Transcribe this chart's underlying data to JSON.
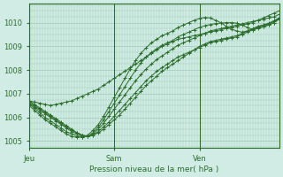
{
  "xlabel": "Pression niveau de la mer( hPa )",
  "bg_color": "#d0ece4",
  "grid_color": "#9fc9b8",
  "line_color": "#2d6e2d",
  "tick_color": "#2d6e2d",
  "label_color": "#2d6e2d",
  "ylim": [
    1004.7,
    1010.8
  ],
  "xlim": [
    0,
    47
  ],
  "day_positions": [
    0,
    16,
    32
  ],
  "day_labels": [
    "Jeu",
    "Sam",
    "Ven"
  ],
  "total_points": 48,
  "series": [
    [
      1006.7,
      1006.65,
      1006.6,
      1006.55,
      1006.5,
      1006.55,
      1006.6,
      1006.65,
      1006.7,
      1006.8,
      1006.9,
      1007.0,
      1007.1,
      1007.2,
      1007.35,
      1007.5,
      1007.65,
      1007.8,
      1007.95,
      1008.1,
      1008.25,
      1008.4,
      1008.55,
      1008.7,
      1008.85,
      1009.0,
      1009.1,
      1009.2,
      1009.3,
      1009.35,
      1009.4,
      1009.45,
      1009.5,
      1009.55,
      1009.6,
      1009.65,
      1009.7,
      1009.75,
      1009.8,
      1009.85,
      1009.9,
      1009.95,
      1010.0,
      1010.1,
      1010.2,
      1010.3,
      1010.4,
      1010.5
    ],
    [
      1006.7,
      1006.55,
      1006.4,
      1006.25,
      1006.1,
      1005.95,
      1005.8,
      1005.65,
      1005.5,
      1005.35,
      1005.25,
      1005.2,
      1005.25,
      1005.35,
      1005.5,
      1005.7,
      1005.9,
      1006.1,
      1006.35,
      1006.6,
      1006.85,
      1007.1,
      1007.35,
      1007.55,
      1007.75,
      1007.95,
      1008.1,
      1008.25,
      1008.4,
      1008.55,
      1008.7,
      1008.85,
      1009.0,
      1009.1,
      1009.2,
      1009.25,
      1009.3,
      1009.35,
      1009.4,
      1009.45,
      1009.55,
      1009.65,
      1009.75,
      1009.85,
      1009.9,
      1009.95,
      1010.05,
      1010.2
    ],
    [
      1006.65,
      1006.5,
      1006.35,
      1006.2,
      1006.05,
      1005.9,
      1005.75,
      1005.6,
      1005.45,
      1005.35,
      1005.25,
      1005.2,
      1005.25,
      1005.4,
      1005.6,
      1005.8,
      1006.05,
      1006.3,
      1006.55,
      1006.8,
      1007.05,
      1007.3,
      1007.55,
      1007.75,
      1007.95,
      1008.1,
      1008.25,
      1008.4,
      1008.55,
      1008.65,
      1008.75,
      1008.85,
      1008.95,
      1009.05,
      1009.15,
      1009.2,
      1009.25,
      1009.3,
      1009.35,
      1009.4,
      1009.5,
      1009.6,
      1009.7,
      1009.8,
      1009.85,
      1009.9,
      1010.0,
      1010.15
    ],
    [
      1006.6,
      1006.45,
      1006.3,
      1006.15,
      1006.0,
      1005.85,
      1005.7,
      1005.55,
      1005.4,
      1005.3,
      1005.22,
      1005.2,
      1005.3,
      1005.5,
      1005.75,
      1006.05,
      1006.35,
      1006.65,
      1006.95,
      1007.25,
      1007.55,
      1007.8,
      1008.05,
      1008.25,
      1008.45,
      1008.6,
      1008.75,
      1008.9,
      1009.05,
      1009.15,
      1009.25,
      1009.35,
      1009.45,
      1009.55,
      1009.65,
      1009.7,
      1009.75,
      1009.8,
      1009.85,
      1009.9,
      1009.95,
      1010.0,
      1010.05,
      1010.1,
      1010.15,
      1010.2,
      1010.25,
      1010.35
    ],
    [
      1006.55,
      1006.4,
      1006.2,
      1006.0,
      1005.85,
      1005.7,
      1005.55,
      1005.4,
      1005.3,
      1005.22,
      1005.18,
      1005.2,
      1005.35,
      1005.6,
      1005.9,
      1006.25,
      1006.6,
      1006.95,
      1007.3,
      1007.65,
      1008.0,
      1008.3,
      1008.55,
      1008.75,
      1008.9,
      1009.05,
      1009.15,
      1009.25,
      1009.4,
      1009.5,
      1009.6,
      1009.7,
      1009.8,
      1009.87,
      1009.92,
      1009.96,
      1009.98,
      1010.0,
      1010.0,
      1009.98,
      1009.9,
      1009.8,
      1009.7,
      1009.75,
      1009.82,
      1009.9,
      1010.0,
      1010.2
    ],
    [
      1006.5,
      1006.3,
      1006.1,
      1005.9,
      1005.75,
      1005.6,
      1005.45,
      1005.3,
      1005.2,
      1005.15,
      1005.18,
      1005.25,
      1005.45,
      1005.7,
      1006.05,
      1006.45,
      1006.85,
      1007.25,
      1007.65,
      1008.05,
      1008.4,
      1008.7,
      1008.95,
      1009.15,
      1009.3,
      1009.45,
      1009.55,
      1009.65,
      1009.8,
      1009.9,
      1010.0,
      1010.1,
      1010.18,
      1010.22,
      1010.2,
      1010.1,
      1010.0,
      1009.85,
      1009.72,
      1009.65,
      1009.6,
      1009.65,
      1009.72,
      1009.82,
      1009.9,
      1009.98,
      1010.08,
      1010.2
    ]
  ]
}
